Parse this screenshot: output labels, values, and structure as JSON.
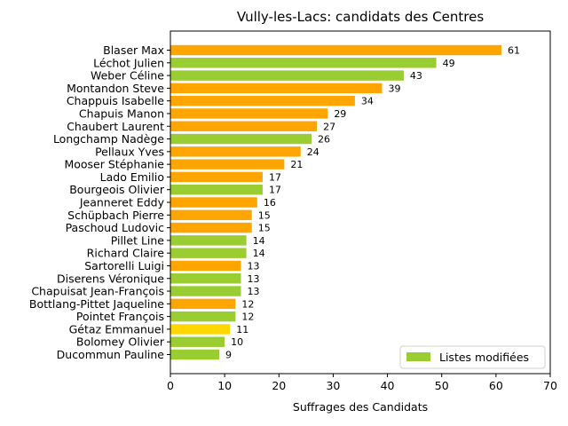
{
  "chart_data": {
    "type": "bar",
    "orientation": "horizontal",
    "title": "Vully-les-Lacs: candidats des Centres",
    "xlabel": "Suffrages des Candidats",
    "ylabel": "",
    "xlim": [
      0,
      70
    ],
    "xticks": [
      "0",
      "10",
      "20",
      "30",
      "40",
      "50",
      "60",
      "70"
    ],
    "grid": false,
    "legend": {
      "position": "bottom-right",
      "entries": [
        {
          "label": "Listes modifiées",
          "color": "#9acd32"
        }
      ]
    },
    "categories": [
      "Blaser Max",
      "Léchot Julien",
      "Weber Céline",
      "Montandon Steve",
      "Chappuis Isabelle",
      "Chapuis Manon",
      "Chaubert Laurent",
      "Longchamp Nadège",
      "Pellaux Yves",
      "Mooser Stéphanie",
      "Lado Emilio",
      "Bourgeois Olivier",
      "Jeanneret Eddy",
      "Schüpbach Pierre",
      "Paschoud Ludovic",
      "Pillet Line",
      "Richard Claire",
      "Sartorelli Luigi",
      "Diserens Véronique",
      "Chapuisat Jean-François",
      "Bottlang-Pittet Jaqueline",
      "Pointet François",
      "Gétaz Emmanuel",
      "Bolomey Olivier",
      "Ducommun Pauline"
    ],
    "values": [
      61,
      49,
      43,
      39,
      34,
      29,
      27,
      26,
      24,
      21,
      17,
      17,
      16,
      15,
      15,
      14,
      14,
      13,
      13,
      13,
      12,
      12,
      11,
      10,
      9
    ],
    "bar_colors": [
      "#ffa500",
      "#9acd32",
      "#9acd32",
      "#ffa500",
      "#ffa500",
      "#ffa500",
      "#ffa500",
      "#9acd32",
      "#ffa500",
      "#ffa500",
      "#ffa500",
      "#9acd32",
      "#ffa500",
      "#ffa500",
      "#ffa500",
      "#9acd32",
      "#9acd32",
      "#ffa500",
      "#9acd32",
      "#9acd32",
      "#ffa500",
      "#9acd32",
      "#ffd700",
      "#9acd32",
      "#9acd32"
    ]
  }
}
